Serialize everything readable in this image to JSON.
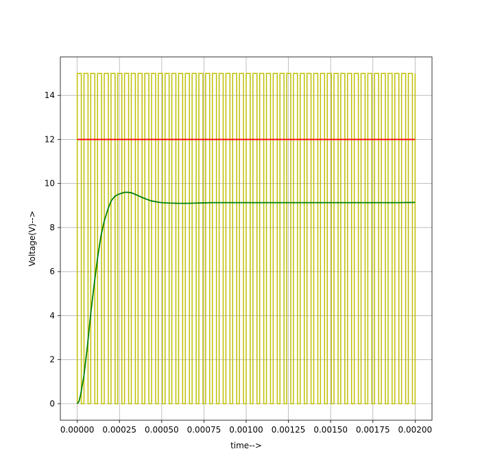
{
  "chart_data": {
    "type": "line",
    "title": "",
    "xlabel": "time-->",
    "ylabel": "Voltage(V)-->",
    "xlim": [
      -0.0001,
      0.0021
    ],
    "ylim": [
      -0.75,
      15.75
    ],
    "x_ticks": [
      0.0,
      0.00025,
      0.0005,
      0.00075,
      0.001,
      0.00125,
      0.0015,
      0.00175,
      0.002
    ],
    "x_tick_labels": [
      "0.00000",
      "0.00025",
      "0.00050",
      "0.00075",
      "0.00100",
      "0.00125",
      "0.00150",
      "0.00175",
      "0.00200"
    ],
    "y_ticks": [
      0,
      2,
      4,
      6,
      8,
      10,
      12,
      14
    ],
    "y_tick_labels": [
      "0",
      "2",
      "4",
      "6",
      "8",
      "10",
      "12",
      "14"
    ],
    "grid": true,
    "series": [
      {
        "kind": "pwm",
        "color": "#bfbf00",
        "low": 0,
        "high": 15,
        "x_start": 0.0,
        "x_end": 0.002,
        "period": 4e-05,
        "duty": 0.6
      },
      {
        "kind": "constant",
        "color": "#ff0000",
        "x": [
          0.0,
          0.002
        ],
        "y": [
          12,
          12
        ]
      },
      {
        "kind": "response",
        "color": "#008000",
        "x": [
          0.0,
          1e-05,
          2e-05,
          4e-05,
          6e-05,
          8e-05,
          0.0001,
          0.00012,
          0.00014,
          0.00016,
          0.00018,
          0.0002,
          0.00022,
          0.00024,
          0.00026,
          0.00028,
          0.0003,
          0.00032,
          0.00034,
          0.00036,
          0.00038,
          0.0004,
          0.00042,
          0.00044,
          0.00046,
          0.00048,
          0.0005,
          0.00055,
          0.0006,
          0.00065,
          0.0007,
          0.00075,
          0.0008,
          0.0009,
          0.001,
          0.0011,
          0.0012,
          0.0013,
          0.0014,
          0.0015,
          0.0016,
          0.0017,
          0.0018,
          0.0019,
          0.002
        ],
        "y": [
          0.0,
          0.1,
          0.4,
          1.3,
          2.6,
          4.1,
          5.4,
          6.6,
          7.6,
          8.3,
          8.8,
          9.2,
          9.4,
          9.5,
          9.55,
          9.6,
          9.6,
          9.58,
          9.52,
          9.45,
          9.38,
          9.32,
          9.26,
          9.21,
          9.18,
          9.15,
          9.13,
          9.11,
          9.1,
          9.1,
          9.11,
          9.12,
          9.13,
          9.13,
          9.13,
          9.13,
          9.13,
          9.13,
          9.13,
          9.13,
          9.13,
          9.13,
          9.13,
          9.13,
          9.14
        ]
      }
    ]
  }
}
